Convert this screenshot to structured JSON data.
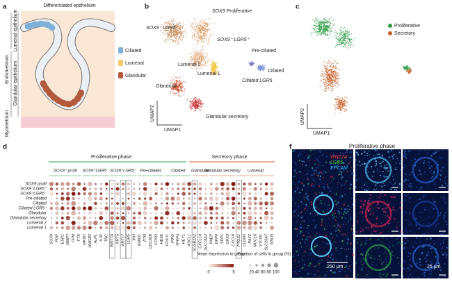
{
  "panel_a": {
    "label": "a",
    "title": "Differentiated epithelium",
    "lumenal": "Lumenal epithelium",
    "glandular": "Glandular epithelium",
    "endometrium": "Endometrium",
    "myometrium": "Myometrium",
    "legend": [
      "Ciliated",
      "Lumenal",
      "Glandular"
    ]
  },
  "panel_b": {
    "label": "b",
    "clusters": [
      "SOX9 Proliferative",
      "SOX9⁺ LGR5⁻",
      "SOX9⁺ LGR5⁺",
      "Pre-ciliated",
      "Lumenal 2",
      "Lumenal 1",
      "Ciliated",
      "Ciliated LGR5",
      "Glandular",
      "Glandular secretory"
    ],
    "x_axis": "UMAP1",
    "y_axis": "UMAP2"
  },
  "panel_c": {
    "label": "c",
    "legend": [
      "Proliferative",
      "Secretory"
    ],
    "x_axis": "UMAP1",
    "y_axis": "UMAP2"
  },
  "panel_d": {
    "label": "d",
    "phases": [
      "Proliferative phase",
      "Secretory phase"
    ],
    "groups": [
      "SOX9⁺ prolif",
      "SOX9⁺LGR5⁻",
      "SOX9⁺LGR5⁺",
      "Pre-ciliated",
      "Ciliated",
      "Glandular",
      "Glandular secretory",
      "Lumenal"
    ],
    "rows": [
      "SOX9 prolif",
      "SOX9⁺LGR5⁺",
      "SOX9⁺LGR5⁻",
      "Pre-ciliated",
      "Ciliated",
      "Ciliated LGR5⁺",
      "Glandular",
      "Glandular secretory",
      "Lumenal 2",
      "Lumenal 1"
    ],
    "genes": [
      "SOX9",
      "PGR",
      "ESR1",
      "MMP7",
      "CPM",
      "FTX",
      "MKI67",
      "HMGB2",
      "ALPL",
      "IL32",
      "TNC",
      "WNT7A",
      "KRT5",
      "KRT17",
      "LGR5",
      "IHH",
      "EMID1",
      "PTN",
      "CDC20B",
      "CCNO",
      "HES6",
      "FOXJ1",
      "PIFO",
      "TPPP3",
      "HEY1",
      "ASCL1",
      "SCGB2A2",
      "CXCL14",
      "SLC18A2",
      "PAEP",
      "DPP4",
      "SPP1",
      "GPX3",
      "CXCL8",
      "PTGS1",
      "CLDN3",
      "PAX2",
      "MUC16",
      "VTCN1",
      "SLC26A7",
      "MSLN"
    ],
    "color_legend": {
      "title": "Mean expression in group",
      "min": "0",
      "max": "5"
    },
    "size_legend": {
      "title": "Fraction of cells in group (%)",
      "ticks": "20 40 60 80 100"
    }
  },
  "panel_f": {
    "label": "f",
    "title": "Proliferative phase",
    "channels": [
      "WNT7A",
      "LGR5",
      "EPCAM"
    ],
    "scale_large": "250 μm",
    "scale_small": "25 μm"
  }
}
